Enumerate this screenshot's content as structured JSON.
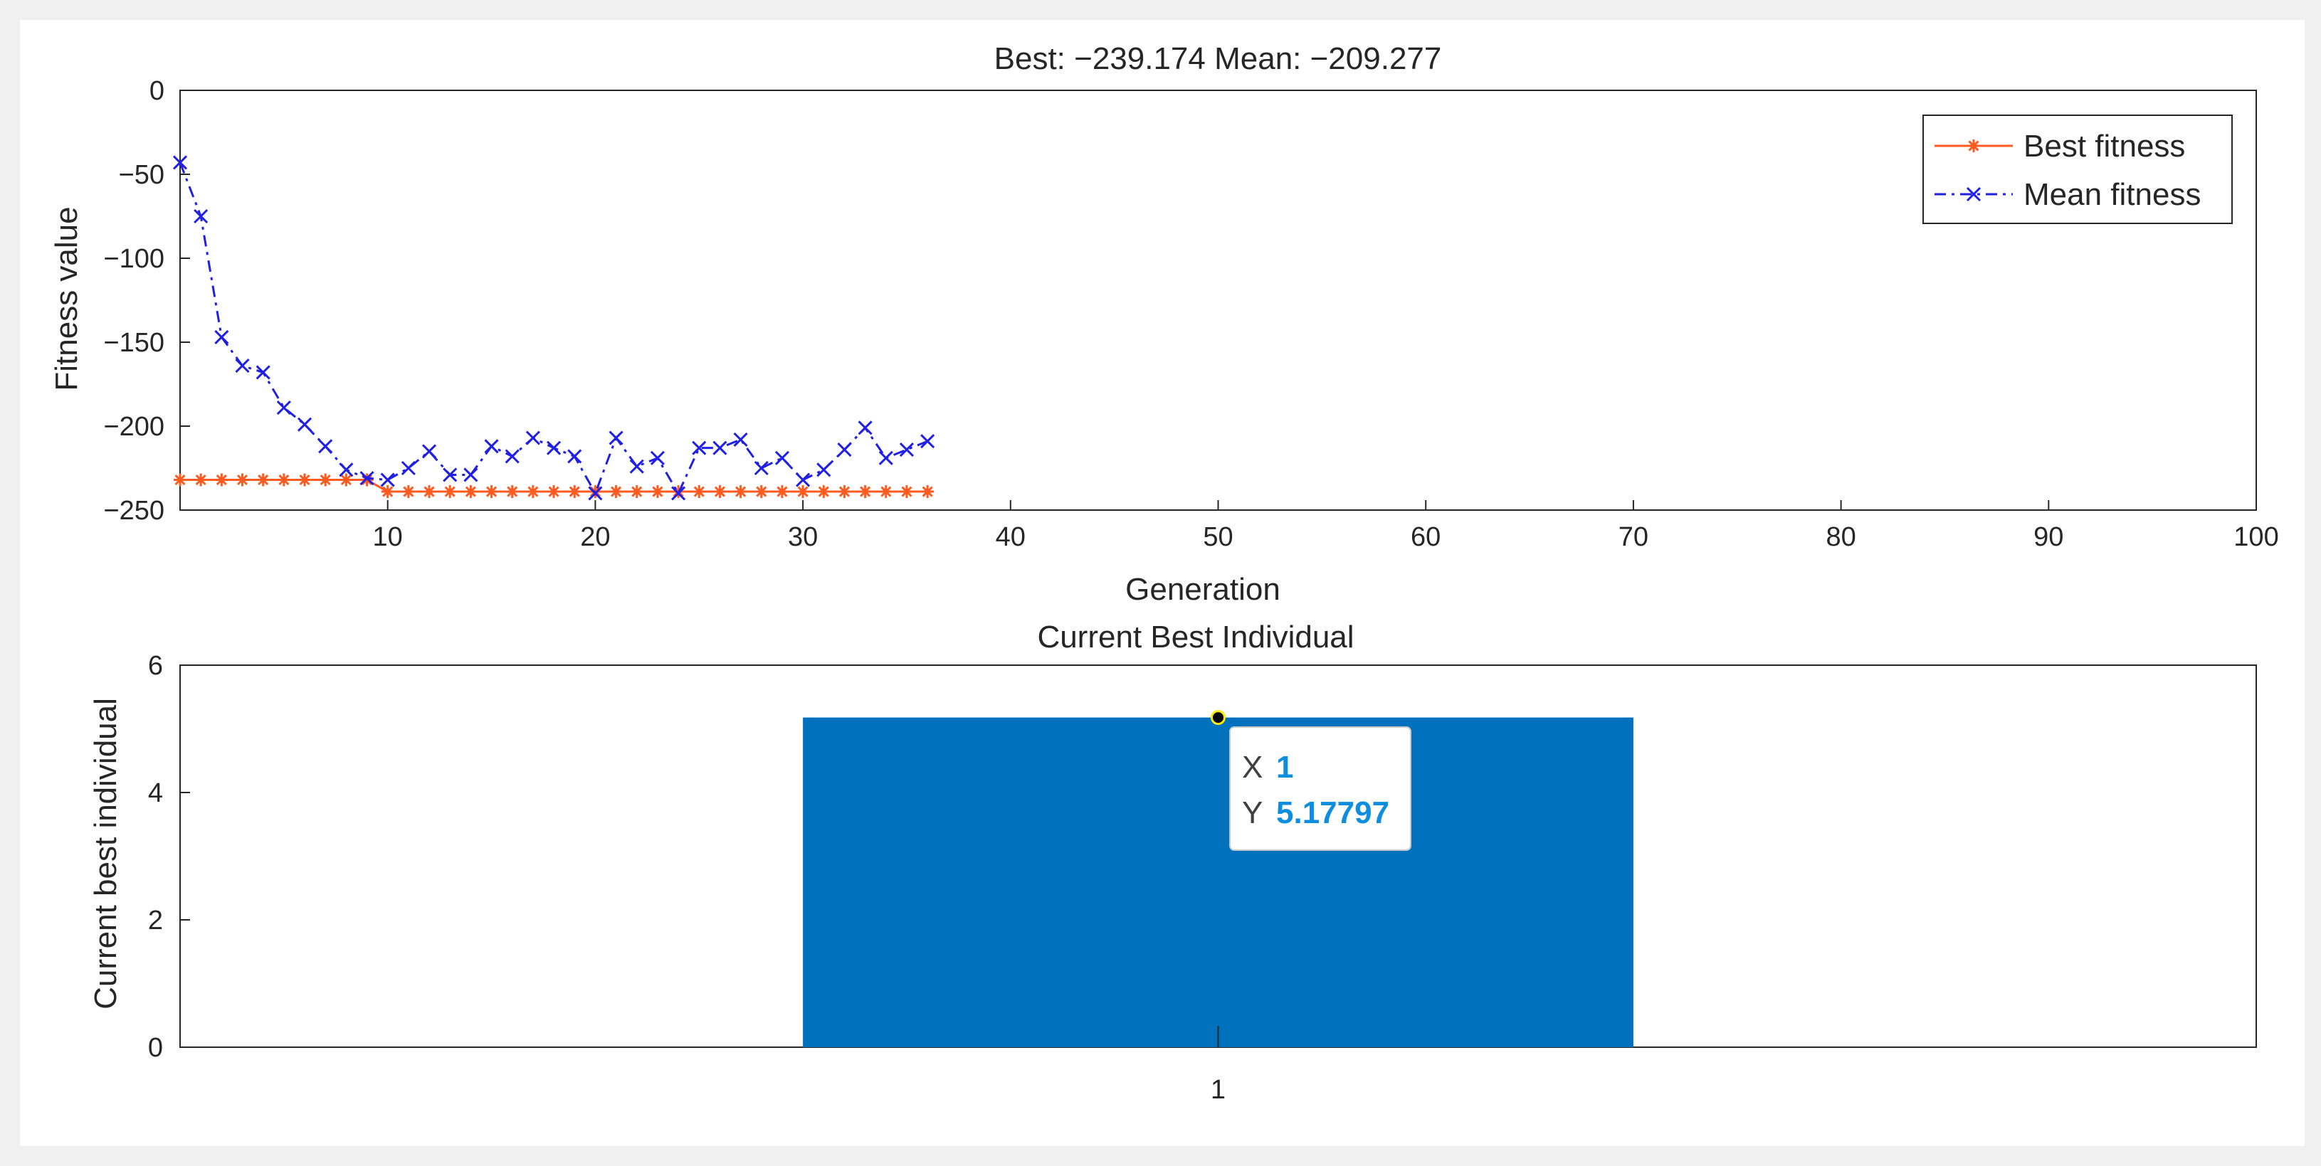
{
  "chart_data": [
    {
      "type": "line",
      "title": "Best: −239.174 Mean: −209.277",
      "xlabel": "Generation",
      "ylabel": "Fitness value",
      "xlim": [
        0,
        100
      ],
      "ylim": [
        -250,
        0
      ],
      "xticks": [
        10,
        20,
        30,
        40,
        50,
        60,
        70,
        80,
        90,
        100
      ],
      "xtick_labels": [
        "10",
        "20",
        "30",
        "40",
        "50",
        "60",
        "70",
        "80",
        "90",
        "100"
      ],
      "yticks": [
        0,
        -50,
        -100,
        -150,
        -200,
        -250
      ],
      "ytick_labels": [
        "0",
        "−50",
        "−100",
        "−150",
        "−200",
        "−250"
      ],
      "grid": false,
      "legend_position": "top-right",
      "series": [
        {
          "name": "Best fitness",
          "color": "#ff5a1f",
          "line_style": "solid",
          "marker": "asterisk",
          "x": [
            0,
            1,
            2,
            3,
            4,
            5,
            6,
            7,
            8,
            9,
            10,
            11,
            12,
            13,
            14,
            15,
            16,
            17,
            18,
            19,
            20,
            21,
            22,
            23,
            24,
            25,
            26,
            27,
            28,
            29,
            30,
            31,
            32,
            33,
            34,
            35,
            36
          ],
          "y": [
            -232,
            -232,
            -232,
            -232,
            -232,
            -232,
            -232,
            -232,
            -232,
            -232,
            -239,
            -239,
            -239,
            -239,
            -239,
            -239,
            -239,
            -239,
            -239,
            -239,
            -239,
            -239,
            -239,
            -239,
            -239,
            -239,
            -239,
            -239,
            -239,
            -239,
            -239,
            -239,
            -239,
            -239,
            -239,
            -239,
            -239
          ]
        },
        {
          "name": "Mean fitness",
          "color": "#1f1fe6",
          "line_style": "dashdot",
          "marker": "x",
          "x": [
            0,
            1,
            2,
            3,
            4,
            5,
            6,
            7,
            8,
            9,
            10,
            11,
            12,
            13,
            14,
            15,
            16,
            17,
            18,
            19,
            20,
            21,
            22,
            23,
            24,
            25,
            26,
            27,
            28,
            29,
            30,
            31,
            32,
            33,
            34,
            35,
            36
          ],
          "y": [
            -43,
            -75,
            -147,
            -164,
            -168,
            -189,
            -199,
            -212,
            -226,
            -231,
            -232,
            -225,
            -215,
            -229,
            -229,
            -212,
            -218,
            -207,
            -213,
            -218,
            -240,
            -207,
            -224,
            -219,
            -240,
            -213,
            -213,
            -208,
            -225,
            -219,
            -232,
            -226,
            -214,
            -201,
            -219,
            -214,
            -209
          ]
        }
      ]
    },
    {
      "type": "bar",
      "title": "Current Best Individual",
      "xlabel": "",
      "ylabel": "Current best individual",
      "categories": [
        "1"
      ],
      "values": [
        5.17797
      ],
      "ylim": [
        0,
        6
      ],
      "yticks": [
        0,
        2,
        4,
        6
      ],
      "ytick_labels": [
        "0",
        "2",
        "4",
        "6"
      ],
      "bar_color": "#0072bd",
      "grid": false,
      "datatip": {
        "x_key": "X",
        "x_value": "1",
        "y_key": "Y",
        "y_value": "5.17797"
      }
    }
  ]
}
